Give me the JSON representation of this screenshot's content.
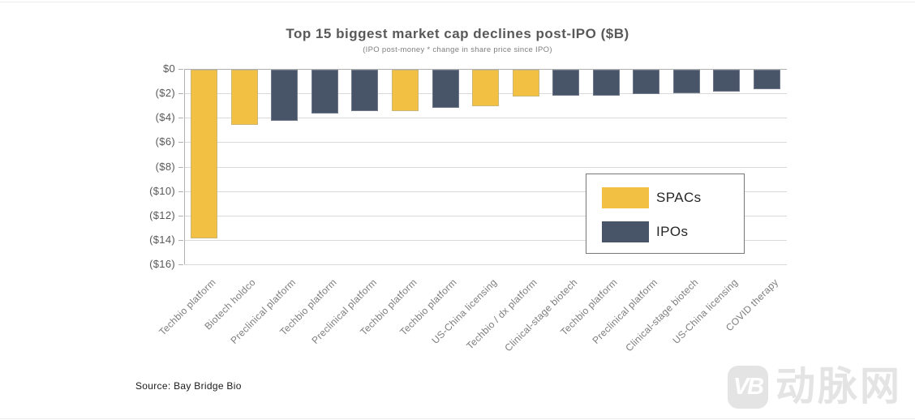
{
  "source": "Source: Bay Bridge Bio",
  "watermark": {
    "logo_text": "VB",
    "brand_text": "动脉网"
  },
  "chart_data": {
    "type": "bar",
    "title": "Top 15 biggest market cap declines post-IPO ($B)",
    "subtitle": "(IPO post-money * change in share price since IPO)",
    "xlabel": "",
    "ylabel": "",
    "ylim": [
      -16,
      0
    ],
    "ytick_labels": [
      "$0",
      "($2)",
      "($4)",
      "($6)",
      "($8)",
      "($10)",
      "($12)",
      "($14)",
      "($16)"
    ],
    "ytick_values": [
      0,
      -2,
      -4,
      -6,
      -8,
      -10,
      -12,
      -14,
      -16
    ],
    "grid": true,
    "legend_position": "center-right",
    "groups": [
      {
        "name": "SPACs",
        "color": "#F2C144"
      },
      {
        "name": "IPOs",
        "color": "#485468"
      }
    ],
    "bars": [
      {
        "label": "Techbio platform",
        "value": -13.8,
        "group": "SPACs"
      },
      {
        "label": "Biotech holdco",
        "value": -4.5,
        "group": "SPACs"
      },
      {
        "label": "Preclinical platform",
        "value": -4.2,
        "group": "IPOs"
      },
      {
        "label": "Techbio platform",
        "value": -3.6,
        "group": "IPOs"
      },
      {
        "label": "Preclinical platform",
        "value": -3.4,
        "group": "IPOs"
      },
      {
        "label": "Techbio platform",
        "value": -3.4,
        "group": "SPACs"
      },
      {
        "label": "Techbio platform",
        "value": -3.1,
        "group": "IPOs"
      },
      {
        "label": "US-China licensing",
        "value": -3.0,
        "group": "SPACs"
      },
      {
        "label": "Techbio / dx platform",
        "value": -2.2,
        "group": "SPACs"
      },
      {
        "label": "Clinical-stage biotech",
        "value": -2.1,
        "group": "IPOs"
      },
      {
        "label": "Techbio platform",
        "value": -2.1,
        "group": "IPOs"
      },
      {
        "label": "Preclinical platform",
        "value": -2.0,
        "group": "IPOs"
      },
      {
        "label": "Clinical-stage biotech",
        "value": -1.9,
        "group": "IPOs"
      },
      {
        "label": "US-China licensing",
        "value": -1.8,
        "group": "IPOs"
      },
      {
        "label": "COVID therapy",
        "value": -1.6,
        "group": "IPOs"
      }
    ]
  }
}
